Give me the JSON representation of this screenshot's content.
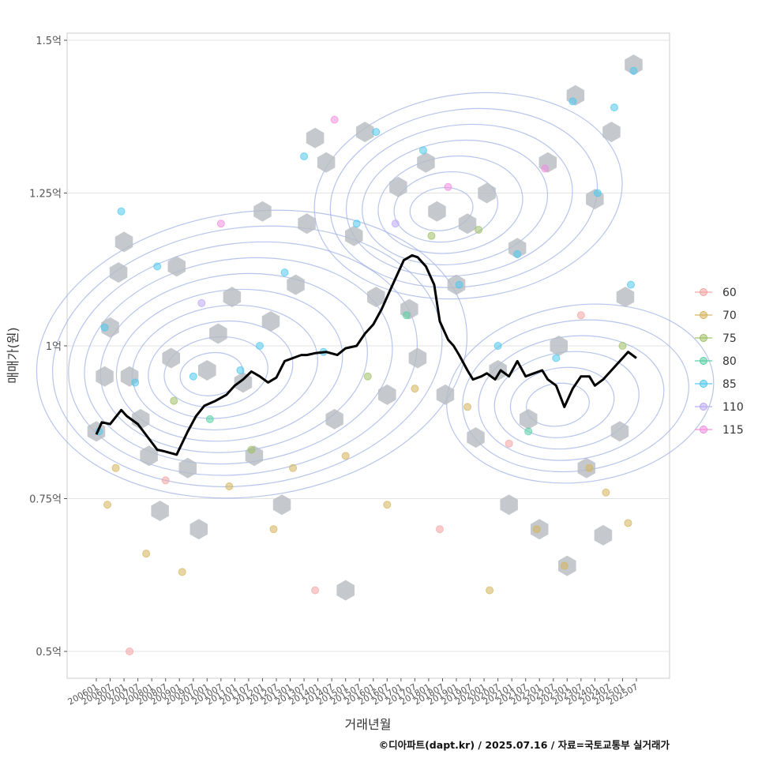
{
  "chart_data": {
    "type": "scatter",
    "xlabel": "거래년월",
    "ylabel": "매매가(원)",
    "caption": "©디아파트(dapt.kr) / 2025.07.16 / 자료=국토교통부 실거래가",
    "ylim": [
      0.45,
      1.52
    ],
    "y_ticks": [
      {
        "value": 0.5,
        "label": "0.5억"
      },
      {
        "value": 0.75,
        "label": "0.75억"
      },
      {
        "value": 1.0,
        "label": "1억"
      },
      {
        "value": 1.25,
        "label": "1.25억"
      },
      {
        "value": 1.5,
        "label": "1.5억"
      }
    ],
    "x_range": [
      2006.0,
      2025.5
    ],
    "x_ticks": [
      "200601",
      "200607",
      "200701",
      "200707",
      "200801",
      "200807",
      "200901",
      "200907",
      "201001",
      "201007",
      "201101",
      "201107",
      "201201",
      "201207",
      "201301",
      "201307",
      "201401",
      "201407",
      "201501",
      "201507",
      "201601",
      "201607",
      "201701",
      "201707",
      "201801",
      "201807",
      "201901",
      "201907",
      "202001",
      "202007",
      "202101",
      "202107",
      "202201",
      "202207",
      "202301",
      "202307",
      "202401",
      "202407",
      "202501",
      "202507"
    ],
    "legend": [
      {
        "label": "60",
        "color": "#F4A3A3"
      },
      {
        "label": "70",
        "color": "#D6B35A"
      },
      {
        "label": "75",
        "color": "#9CC063"
      },
      {
        "label": "80",
        "color": "#55CFA3"
      },
      {
        "label": "85",
        "color": "#4FC8EC"
      },
      {
        "label": "110",
        "color": "#BAA7F2"
      },
      {
        "label": "115",
        "color": "#F08CDF"
      }
    ],
    "trend_line": {
      "name": "moving average",
      "x": [
        2006.0,
        2006.2,
        2006.5,
        2006.9,
        2007.1,
        2007.5,
        2007.9,
        2008.2,
        2008.4,
        2008.9,
        2009.3,
        2009.6,
        2009.9,
        2010.3,
        2010.7,
        2011.0,
        2011.3,
        2011.6,
        2011.9,
        2012.2,
        2012.5,
        2012.8,
        2013.1,
        2013.4,
        2013.6,
        2013.9,
        2014.3,
        2014.7,
        2015.0,
        2015.4,
        2015.7,
        2016.0,
        2016.3,
        2016.6,
        2016.9,
        2017.1,
        2017.4,
        2017.6,
        2017.9,
        2018.2,
        2018.4,
        2018.7,
        2018.9,
        2019.1,
        2019.4,
        2019.6,
        2019.9,
        2020.1,
        2020.4,
        2020.6,
        2020.9,
        2021.2,
        2021.5,
        2021.8,
        2022.1,
        2022.3,
        2022.6,
        2022.9,
        2023.2,
        2023.5,
        2023.8,
        2024.0,
        2024.3,
        2024.6,
        2024.9,
        2025.2,
        2025.5
      ],
      "y": [
        0.855,
        0.875,
        0.872,
        0.895,
        0.885,
        0.872,
        0.848,
        0.83,
        0.828,
        0.822,
        0.86,
        0.885,
        0.902,
        0.91,
        0.92,
        0.935,
        0.945,
        0.958,
        0.95,
        0.94,
        0.948,
        0.975,
        0.98,
        0.985,
        0.985,
        0.988,
        0.99,
        0.985,
        0.996,
        1.0,
        1.02,
        1.035,
        1.06,
        1.09,
        1.12,
        1.14,
        1.148,
        1.145,
        1.13,
        1.1,
        1.04,
        1.01,
        1.0,
        0.985,
        0.96,
        0.945,
        0.95,
        0.955,
        0.945,
        0.96,
        0.95,
        0.975,
        0.95,
        0.955,
        0.96,
        0.945,
        0.935,
        0.9,
        0.93,
        0.95,
        0.95,
        0.935,
        0.945,
        0.96,
        0.975,
        0.99,
        0.98
      ]
    },
    "hexbin_centers": [
      [
        2006.0,
        0.86
      ],
      [
        2006.3,
        0.95
      ],
      [
        2006.5,
        1.03
      ],
      [
        2006.8,
        1.12
      ],
      [
        2007.0,
        1.17
      ],
      [
        2007.2,
        0.95
      ],
      [
        2007.6,
        0.88
      ],
      [
        2007.9,
        0.82
      ],
      [
        2008.3,
        0.73
      ],
      [
        2008.7,
        0.98
      ],
      [
        2008.9,
        1.13
      ],
      [
        2009.3,
        0.8
      ],
      [
        2009.7,
        0.7
      ],
      [
        2010.0,
        0.96
      ],
      [
        2010.4,
        1.02
      ],
      [
        2010.9,
        1.08
      ],
      [
        2011.3,
        0.94
      ],
      [
        2011.7,
        0.82
      ],
      [
        2012.0,
        1.22
      ],
      [
        2012.3,
        1.04
      ],
      [
        2012.7,
        0.74
      ],
      [
        2013.2,
        1.1
      ],
      [
        2013.6,
        1.2
      ],
      [
        2013.9,
        1.34
      ],
      [
        2014.3,
        1.3
      ],
      [
        2014.6,
        0.88
      ],
      [
        2015.0,
        0.6
      ],
      [
        2015.3,
        1.18
      ],
      [
        2015.7,
        1.35
      ],
      [
        2016.1,
        1.08
      ],
      [
        2016.5,
        0.92
      ],
      [
        2016.9,
        1.26
      ],
      [
        2017.3,
        1.06
      ],
      [
        2017.6,
        0.98
      ],
      [
        2017.9,
        1.3
      ],
      [
        2018.3,
        1.22
      ],
      [
        2018.6,
        0.92
      ],
      [
        2019.0,
        1.1
      ],
      [
        2019.4,
        1.2
      ],
      [
        2019.7,
        0.85
      ],
      [
        2020.1,
        1.25
      ],
      [
        2020.5,
        0.96
      ],
      [
        2020.9,
        0.74
      ],
      [
        2021.2,
        1.16
      ],
      [
        2021.6,
        0.88
      ],
      [
        2022.0,
        0.7
      ],
      [
        2022.3,
        1.3
      ],
      [
        2022.7,
        1.0
      ],
      [
        2023.0,
        0.64
      ],
      [
        2023.3,
        1.41
      ],
      [
        2023.7,
        0.8
      ],
      [
        2024.0,
        1.24
      ],
      [
        2024.3,
        0.69
      ],
      [
        2024.6,
        1.35
      ],
      [
        2024.9,
        0.86
      ],
      [
        2025.1,
        1.08
      ],
      [
        2025.4,
        1.46
      ]
    ],
    "sample_points": [
      [
        2006.1,
        0.86,
        "85"
      ],
      [
        2006.3,
        1.03,
        "85"
      ],
      [
        2006.4,
        0.74,
        "70"
      ],
      [
        2006.7,
        0.8,
        "70"
      ],
      [
        2006.9,
        1.22,
        "85"
      ],
      [
        2007.2,
        0.5,
        "60"
      ],
      [
        2007.4,
        0.94,
        "85"
      ],
      [
        2007.8,
        0.66,
        "70"
      ],
      [
        2008.2,
        1.13,
        "85"
      ],
      [
        2008.5,
        0.78,
        "60"
      ],
      [
        2008.8,
        0.91,
        "75"
      ],
      [
        2009.1,
        0.63,
        "70"
      ],
      [
        2009.5,
        0.95,
        "85"
      ],
      [
        2009.8,
        1.07,
        "110"
      ],
      [
        2010.1,
        0.88,
        "80"
      ],
      [
        2010.5,
        1.2,
        "115"
      ],
      [
        2010.8,
        0.77,
        "70"
      ],
      [
        2011.2,
        0.96,
        "85"
      ],
      [
        2011.6,
        0.83,
        "75"
      ],
      [
        2011.9,
        1.0,
        "85"
      ],
      [
        2012.4,
        0.7,
        "70"
      ],
      [
        2012.8,
        1.12,
        "85"
      ],
      [
        2013.1,
        0.8,
        "70"
      ],
      [
        2013.5,
        1.31,
        "85"
      ],
      [
        2013.9,
        0.6,
        "60"
      ],
      [
        2014.2,
        0.99,
        "85"
      ],
      [
        2014.6,
        1.37,
        "115"
      ],
      [
        2015.0,
        0.82,
        "70"
      ],
      [
        2015.4,
        1.2,
        "85"
      ],
      [
        2015.8,
        0.95,
        "75"
      ],
      [
        2016.1,
        1.35,
        "85"
      ],
      [
        2016.5,
        0.74,
        "70"
      ],
      [
        2016.8,
        1.2,
        "110"
      ],
      [
        2017.2,
        1.05,
        "80"
      ],
      [
        2017.5,
        0.93,
        "70"
      ],
      [
        2017.8,
        1.32,
        "85"
      ],
      [
        2018.1,
        1.18,
        "75"
      ],
      [
        2018.4,
        0.7,
        "60"
      ],
      [
        2018.7,
        1.26,
        "115"
      ],
      [
        2019.1,
        1.1,
        "85"
      ],
      [
        2019.4,
        0.9,
        "70"
      ],
      [
        2019.8,
        1.19,
        "75"
      ],
      [
        2020.2,
        0.6,
        "70"
      ],
      [
        2020.5,
        1.0,
        "85"
      ],
      [
        2020.9,
        0.84,
        "60"
      ],
      [
        2021.2,
        1.15,
        "85"
      ],
      [
        2021.6,
        0.86,
        "80"
      ],
      [
        2021.9,
        0.7,
        "70"
      ],
      [
        2022.2,
        1.29,
        "115"
      ],
      [
        2022.6,
        0.98,
        "85"
      ],
      [
        2022.9,
        0.64,
        "70"
      ],
      [
        2023.2,
        1.4,
        "85"
      ],
      [
        2023.5,
        1.05,
        "60"
      ],
      [
        2023.8,
        0.8,
        "70"
      ],
      [
        2024.1,
        1.25,
        "85"
      ],
      [
        2024.4,
        0.76,
        "70"
      ],
      [
        2024.7,
        1.39,
        "85"
      ],
      [
        2025.0,
        1.0,
        "75"
      ],
      [
        2025.2,
        0.71,
        "70"
      ],
      [
        2025.3,
        1.1,
        "85"
      ],
      [
        2025.4,
        1.45,
        "85"
      ]
    ],
    "density_contours": [
      {
        "cx": 2010.0,
        "cy": 0.95,
        "levels": 10
      },
      {
        "cx": 2018.3,
        "cy": 1.22,
        "levels": 7
      },
      {
        "cx": 2022.5,
        "cy": 0.9,
        "levels": 6
      }
    ]
  }
}
